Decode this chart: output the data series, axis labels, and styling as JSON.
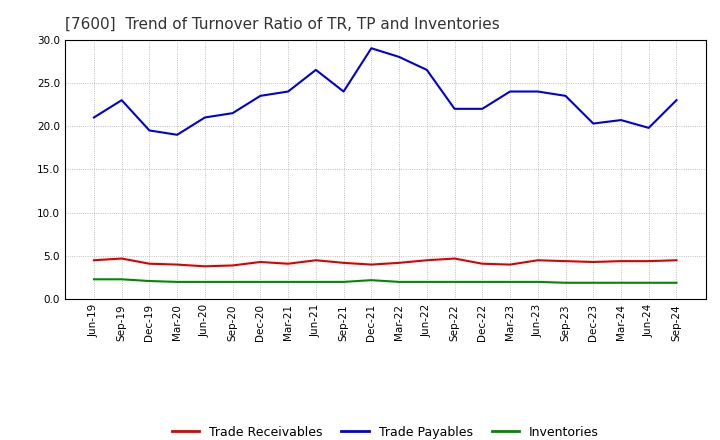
{
  "title": "[7600]  Trend of Turnover Ratio of TR, TP and Inventories",
  "x_labels": [
    "Jun-19",
    "Sep-19",
    "Dec-19",
    "Mar-20",
    "Jun-20",
    "Sep-20",
    "Dec-20",
    "Mar-21",
    "Jun-21",
    "Sep-21",
    "Dec-21",
    "Mar-22",
    "Jun-22",
    "Sep-22",
    "Dec-22",
    "Mar-23",
    "Jun-23",
    "Sep-23",
    "Dec-23",
    "Mar-24",
    "Jun-24",
    "Sep-24"
  ],
  "trade_receivables": [
    4.5,
    4.7,
    4.1,
    4.0,
    3.8,
    3.9,
    4.3,
    4.1,
    4.5,
    4.2,
    4.0,
    4.2,
    4.5,
    4.7,
    4.1,
    4.0,
    4.5,
    4.4,
    4.3,
    4.4,
    4.4,
    4.5
  ],
  "trade_payables": [
    21.0,
    23.0,
    19.5,
    19.0,
    21.0,
    21.5,
    23.5,
    24.0,
    26.5,
    24.0,
    29.0,
    28.0,
    26.5,
    22.0,
    22.0,
    24.0,
    24.0,
    23.5,
    20.3,
    20.7,
    19.8,
    23.0
  ],
  "inventories": [
    2.3,
    2.3,
    2.1,
    2.0,
    2.0,
    2.0,
    2.0,
    2.0,
    2.0,
    2.0,
    2.2,
    2.0,
    2.0,
    2.0,
    2.0,
    2.0,
    2.0,
    1.9,
    1.9,
    1.9,
    1.9,
    1.9
  ],
  "ylim": [
    0.0,
    30.0
  ],
  "yticks": [
    0.0,
    5.0,
    10.0,
    15.0,
    20.0,
    25.0,
    30.0
  ],
  "color_tr": "#dd0000",
  "color_tp": "#0000dd",
  "color_inv": "#008800",
  "legend_labels": [
    "Trade Receivables",
    "Trade Payables",
    "Inventories"
  ],
  "background_color": "#ffffff",
  "grid_color": "#999999",
  "title_fontsize": 11,
  "label_fontsize": 7.5,
  "legend_fontsize": 9.0,
  "title_color": "#333333"
}
